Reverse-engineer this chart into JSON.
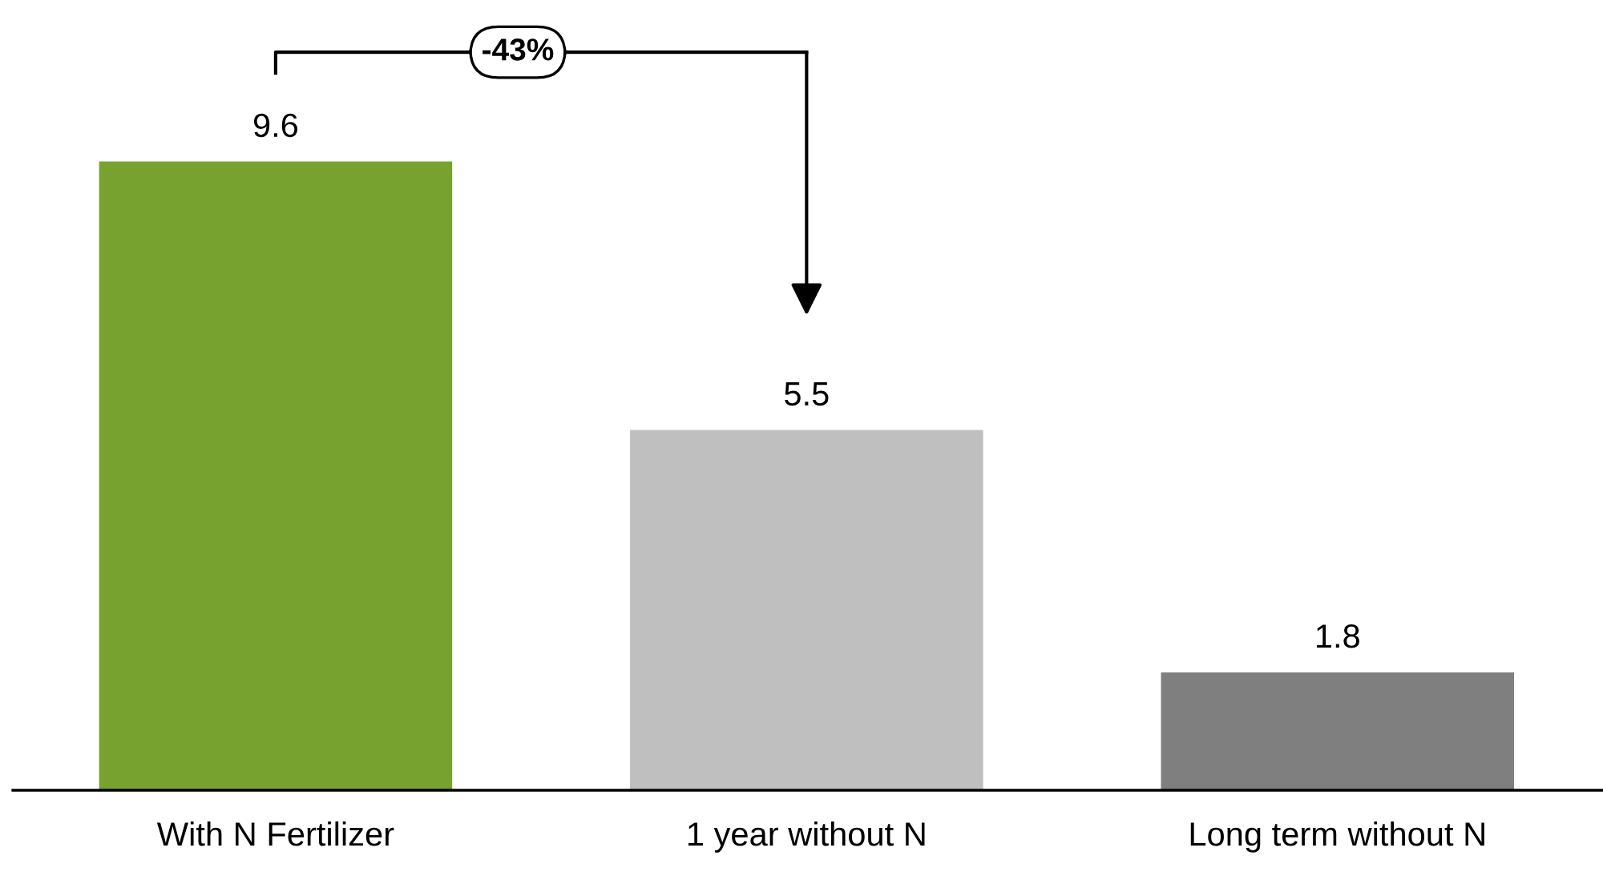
{
  "chart_data": {
    "type": "bar",
    "categories": [
      "With N Fertilizer",
      "1 year without N",
      "Long term without N"
    ],
    "values": [
      9.6,
      5.5,
      1.8
    ],
    "colors": [
      "#78a22f",
      "#bfbfbf",
      "#7f7f7f"
    ],
    "data_labels": true,
    "annotations": [
      "-43%"
    ]
  }
}
